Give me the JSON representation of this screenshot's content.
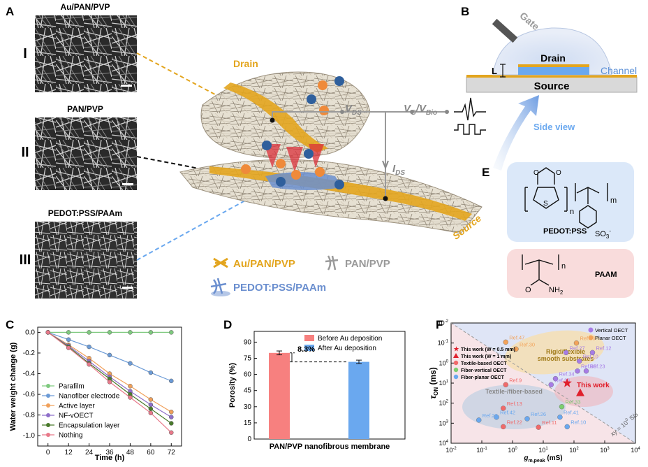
{
  "panels": {
    "A": {
      "letter": "A",
      "micrographs": [
        {
          "roman": "I",
          "title": "Au/PAN/PVP"
        },
        {
          "roman": "II",
          "title": "PAN/PVP"
        },
        {
          "roman": "III",
          "title": "PEDOT:PSS/PAAm"
        }
      ],
      "drain_label": "Drain",
      "source_label": "Source",
      "vds_label": "V",
      "vds_sub": "DS",
      "vg_label": "V",
      "vg_sub": "G",
      "slash": "/",
      "vbio_label": "V",
      "vbio_sub": "Bio",
      "ids_label": "I",
      "ids_sub": "DS",
      "legend": [
        {
          "label": "Au/PAN/PVP",
          "color": "#e3a51e"
        },
        {
          "label": "PAN/PVP",
          "color": "#9a9a9a"
        },
        {
          "label": "PEDOT:PSS/PAAm",
          "color": "#6b8fcf"
        }
      ]
    },
    "B": {
      "letter": "B",
      "gate_label": "Gate",
      "drain_label": "Drain",
      "channel_label": "Channel",
      "source_label": "Source",
      "l_label": "L",
      "side_view_label": "Side view"
    },
    "E": {
      "letter": "E",
      "pedot_label": "PEDOT:PSS",
      "paam_label": "PAAM",
      "s_label": "S",
      "o_label": "O",
      "so3_label": "SO",
      "so3_sub": "3",
      "so3_sup": "-",
      "n_label": "n",
      "m_label": "m",
      "nh2_label": "NH",
      "nh2_sub": "2"
    },
    "D": {
      "letter": "D",
      "annotation": "8.3%",
      "xlabel": "PAN/PVP nanofibrous membrane"
    },
    "F": {
      "letter": "F",
      "region_labels": {
        "rigid": "Rigid/flexible",
        "rigid2": "smooth substrates",
        "textile": "Textile-/fiber-based",
        "this_work": "This work",
        "xy": "xy = 10",
        "xy_sup": "0",
        "xy_tail": " S/s"
      }
    }
  },
  "chart_data": [
    {
      "id": "C",
      "type": "line",
      "title": "C",
      "xlabel": "Time (h)",
      "ylabel": "Water weight change (g)",
      "xlim": [
        -6,
        78
      ],
      "ylim": [
        -1.1,
        0.05
      ],
      "x": [
        0,
        12,
        24,
        36,
        48,
        60,
        72
      ],
      "xticks": [
        0,
        12,
        24,
        36,
        48,
        60,
        72
      ],
      "yticks": [
        0.0,
        -0.2,
        -0.4,
        -0.6,
        -0.8,
        -1.0
      ],
      "ytick_labels": [
        "0.0",
        "-0.2",
        "-0.4",
        "-0.6",
        "-0.8",
        "-1.0"
      ],
      "legend_position": "bottom-left",
      "series": [
        {
          "name": "Parafilm",
          "color": "#7fc97f",
          "values": [
            0,
            0,
            0,
            0,
            0,
            0,
            0
          ]
        },
        {
          "name": "Nanofiber electrode",
          "color": "#6c9bd6",
          "values": [
            0,
            -0.07,
            -0.14,
            -0.22,
            -0.3,
            -0.39,
            -0.47
          ]
        },
        {
          "name": "Active layer",
          "color": "#f0a05a",
          "values": [
            0,
            -0.12,
            -0.25,
            -0.4,
            -0.52,
            -0.65,
            -0.77
          ]
        },
        {
          "name": "NF-vOECT",
          "color": "#8e6fc9",
          "values": [
            0,
            -0.13,
            -0.28,
            -0.43,
            -0.57,
            -0.7,
            -0.82
          ]
        },
        {
          "name": "Encapsulation layer",
          "color": "#4a7a2c",
          "values": [
            0,
            -0.14,
            -0.3,
            -0.45,
            -0.6,
            -0.74,
            -0.88
          ]
        },
        {
          "name": "Nothing",
          "color": "#e8798a",
          "values": [
            0,
            -0.15,
            -0.31,
            -0.48,
            -0.63,
            -0.78,
            -0.97
          ]
        }
      ]
    },
    {
      "id": "D",
      "type": "bar",
      "title": "D",
      "ylabel": "Porosity (%)",
      "ylim": [
        0,
        100
      ],
      "yticks": [
        0,
        15,
        30,
        45,
        60,
        75,
        90
      ],
      "legend_position": "top-right",
      "series": [
        {
          "name": "Before Au deposition",
          "color": "#f7807f",
          "value": 80.0,
          "error": 1.8
        },
        {
          "name": "After Au deposition",
          "color": "#6aa8ef",
          "value": 71.7,
          "error": 1.6
        }
      ]
    },
    {
      "id": "F",
      "type": "scatter",
      "title": "F",
      "xlabel": "g",
      "xlabel_sub": "m,peak",
      "xlabel_tail": " (mS)",
      "ylabel": "τ",
      "ylabel_sub": "ON",
      "ylabel_tail": " (ms)",
      "xscale": "log",
      "yscale": "log",
      "yreversed": true,
      "xlim": [
        0.01,
        10000
      ],
      "ylim": [
        0.01,
        10000
      ],
      "xticks": [
        0.01,
        0.1,
        1,
        10,
        100,
        1000,
        10000
      ],
      "xtick_labels": [
        "10",
        "10",
        "10",
        "10",
        "10",
        "10",
        "10"
      ],
      "xtick_exps": [
        "-2",
        "-1",
        "0",
        "1",
        "2",
        "3",
        "4"
      ],
      "yticks": [
        0.01,
        0.1,
        1,
        10,
        100,
        1000,
        10000
      ],
      "ytick_labels": [
        "10",
        "10",
        "10",
        "10",
        "10",
        "10",
        "10"
      ],
      "ytick_exps": [
        "-2",
        "-1",
        "0",
        "1",
        "2",
        "3",
        "4"
      ],
      "legend_right": [
        {
          "name": "Vertical OECT",
          "color": "#a77ce6"
        },
        {
          "name": "Planar OECT",
          "color": "#f3a35a"
        }
      ],
      "legend_left": [
        {
          "name": "This work (W = 0.5 mm)",
          "color": "#e0202c",
          "marker": "star"
        },
        {
          "name": "This work (W = 1 mm)",
          "color": "#e0202c",
          "marker": "triangle"
        },
        {
          "name": "Textile-based OECT",
          "color": "#f06a6a",
          "marker": "circle"
        },
        {
          "name": "Fiber-vertical OECT",
          "color": "#7ccf6e",
          "marker": "circle"
        },
        {
          "name": "Fiber-planar OECT",
          "color": "#6aa8ef",
          "marker": "circle"
        }
      ],
      "points": [
        {
          "label": "Ref.47",
          "x": 0.6,
          "y": 0.09,
          "color": "#f3a35a"
        },
        {
          "label": "Ref.30",
          "x": 1.3,
          "y": 0.2,
          "color": "#f3a35a"
        },
        {
          "label": "Ref.46",
          "x": 120,
          "y": 0.1,
          "color": "#f3a35a"
        },
        {
          "label": "Ref.27",
          "x": 55,
          "y": 0.3,
          "color": "#a77ce6"
        },
        {
          "label": "Ref.12",
          "x": 400,
          "y": 0.3,
          "color": "#a77ce6"
        },
        {
          "label": "Ref.10",
          "x": 150,
          "y": 0.8,
          "color": "#a77ce6"
        },
        {
          "label": "Ref.23",
          "x": 250,
          "y": 2.5,
          "color": "#a77ce6"
        },
        {
          "label": "Ref.35",
          "x": 130,
          "y": 2.5,
          "color": "#a77ce6"
        },
        {
          "label": "Ref.34",
          "x": 25,
          "y": 6,
          "color": "#a77ce6"
        },
        {
          "label": "Ref.36",
          "x": 18,
          "y": 12,
          "color": "#a77ce6"
        },
        {
          "label": "Ref.9",
          "x": 0.6,
          "y": 12,
          "color": "#f06a6a"
        },
        {
          "label": "Ref.13",
          "x": 0.5,
          "y": 180,
          "color": "#f06a6a"
        },
        {
          "label": "Ref.22",
          "x": 0.5,
          "y": 1500,
          "color": "#f06a6a"
        },
        {
          "label": "Ref.11",
          "x": 7,
          "y": 1600,
          "color": "#f06a6a"
        },
        {
          "label": "Ref.42",
          "x": 0.3,
          "y": 500,
          "color": "#6aa8ef"
        },
        {
          "label": "Ref.20",
          "x": 0.08,
          "y": 700,
          "color": "#6aa8ef"
        },
        {
          "label": "Ref.26",
          "x": 3,
          "y": 600,
          "color": "#6aa8ef"
        },
        {
          "label": "Ref.41",
          "x": 35,
          "y": 500,
          "color": "#6aa8ef"
        },
        {
          "label": "Ref.10",
          "x": 60,
          "y": 1500,
          "color": "#6aa8ef"
        },
        {
          "label": "Ref.33",
          "x": 40,
          "y": 150,
          "color": "#7ccf6e"
        }
      ],
      "this_work": [
        {
          "marker": "star",
          "x": 60,
          "y": 10,
          "color": "#e0202c"
        },
        {
          "marker": "triangle",
          "x": 160,
          "y": 30,
          "color": "#e0202c"
        }
      ]
    }
  ]
}
